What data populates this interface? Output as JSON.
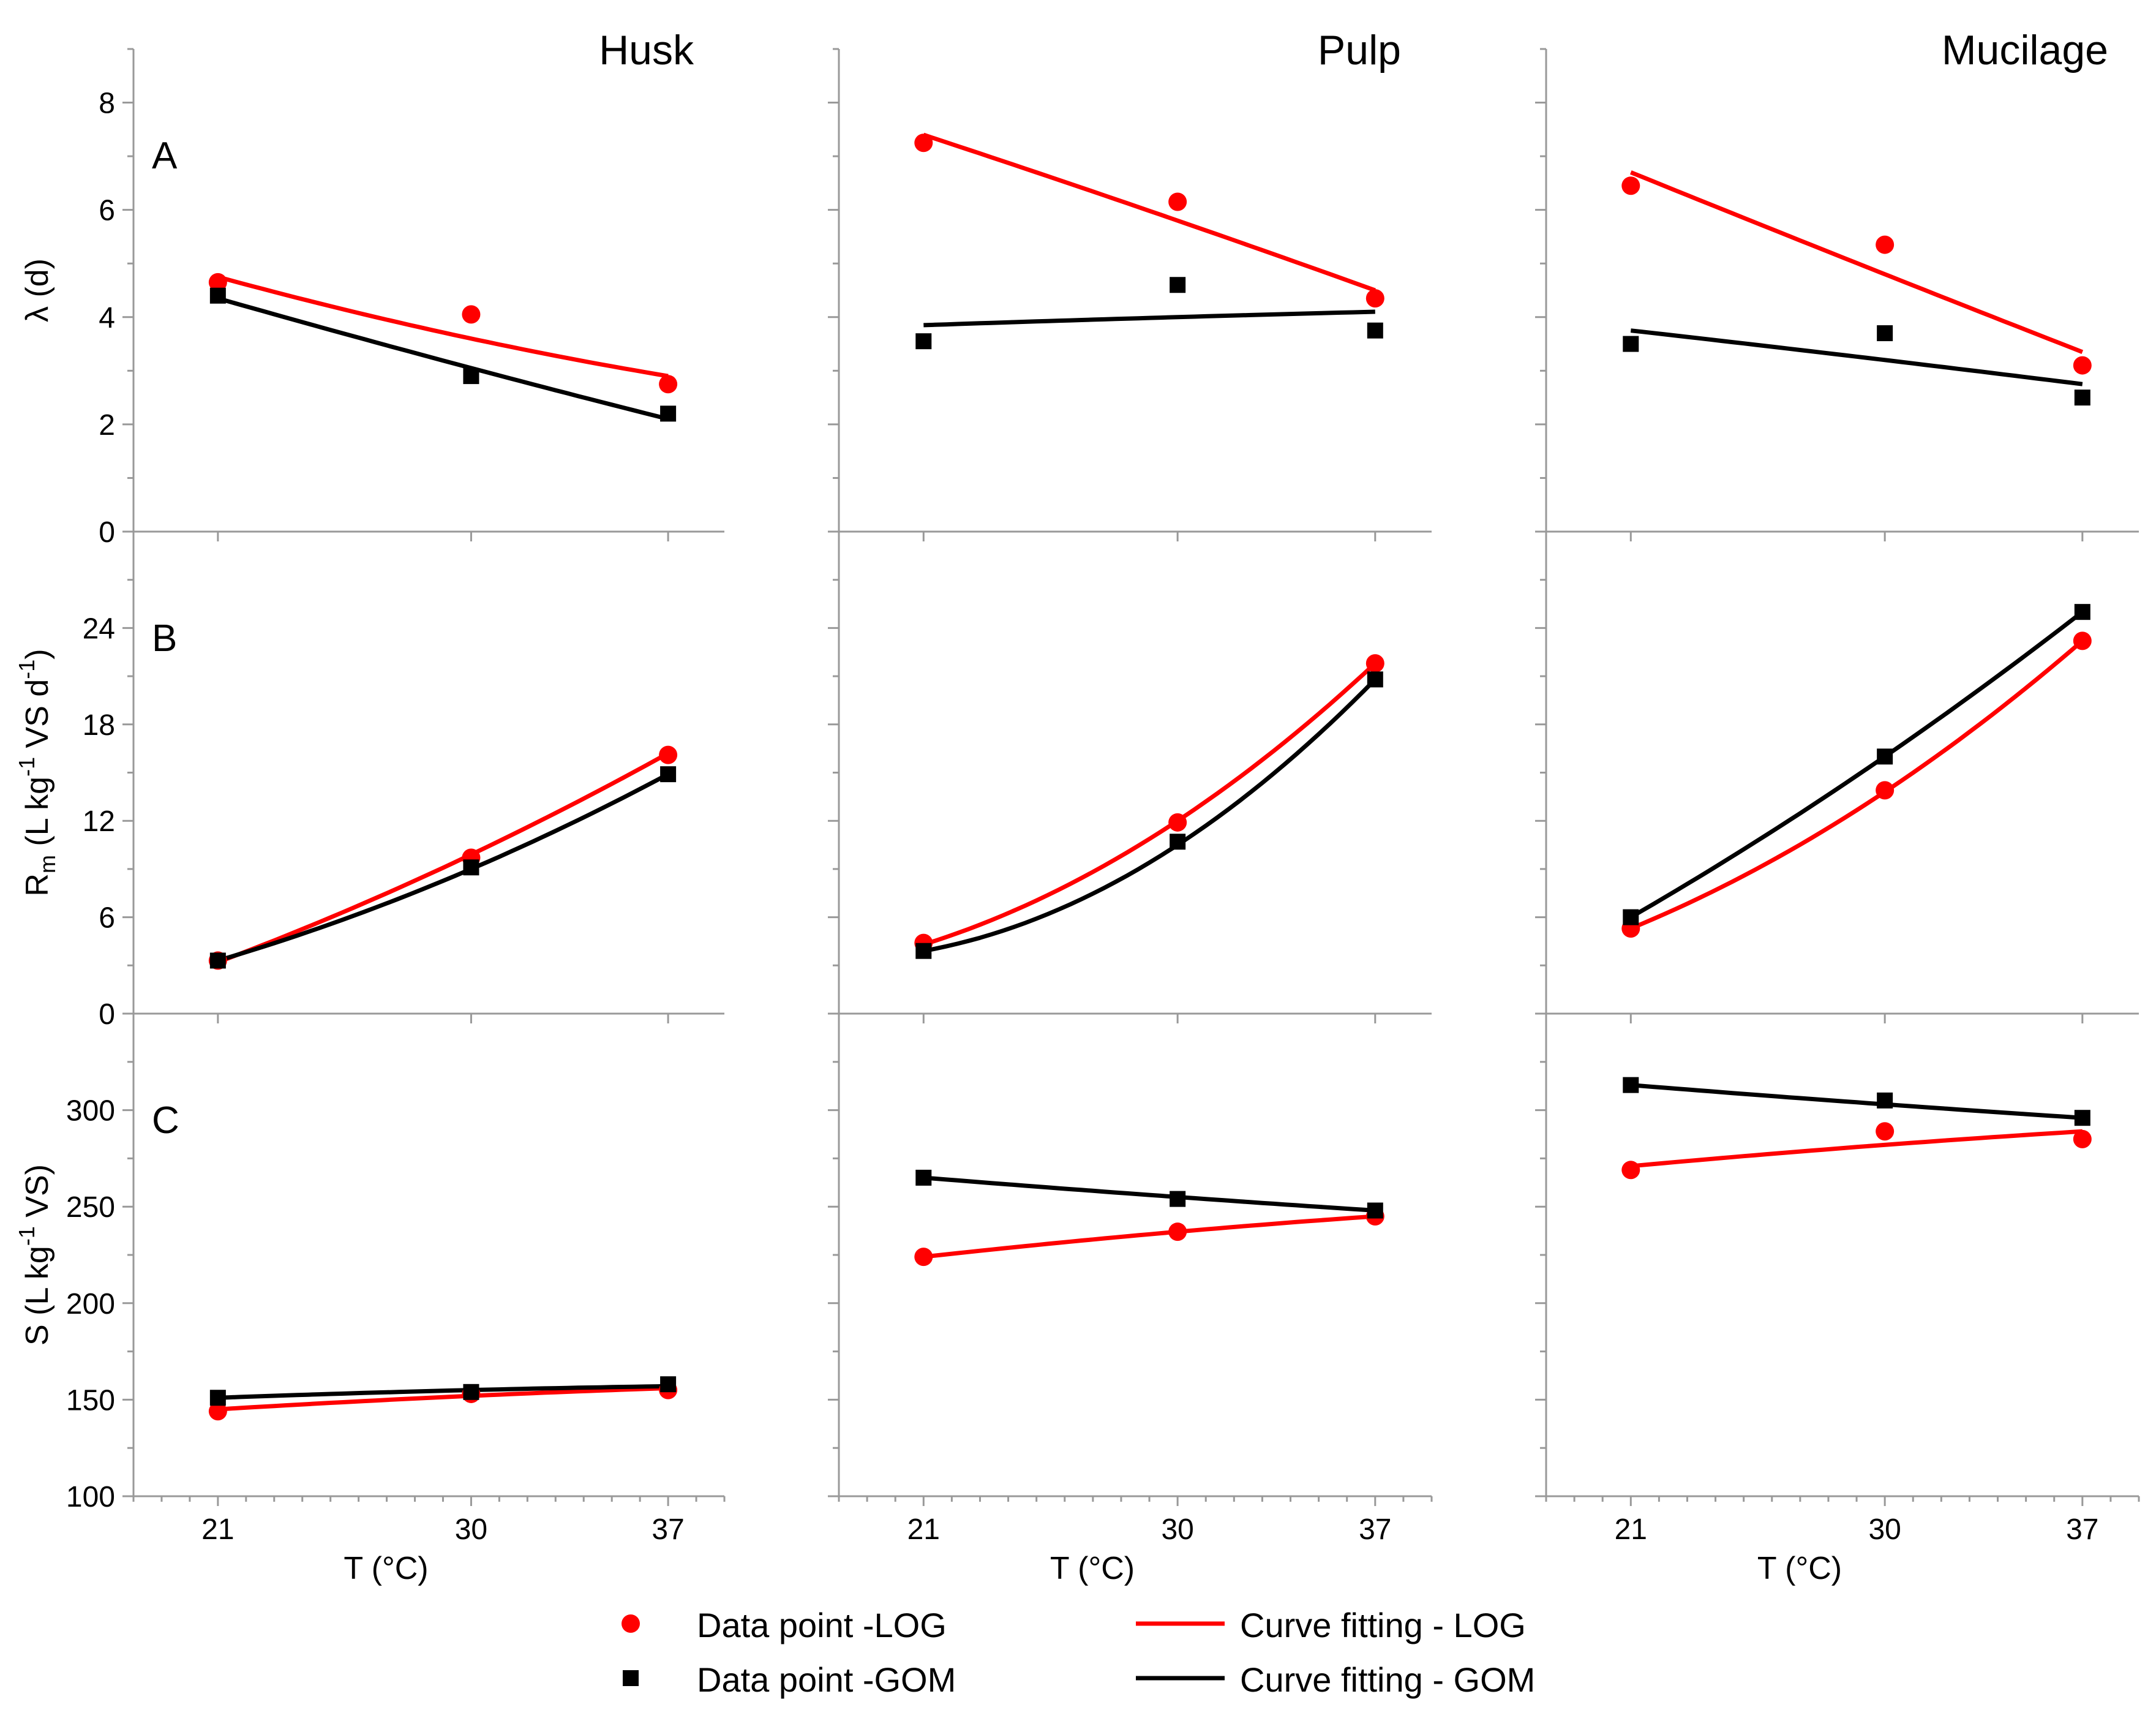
{
  "chart_data": {
    "type": "scatter",
    "columns": [
      "Husk",
      "Pulp",
      "Mucilage"
    ],
    "rows": [
      {
        "letter": "A",
        "ylabel": "λ (d)",
        "ylim": [
          0,
          9
        ],
        "yticks": [
          0,
          2,
          4,
          6,
          8
        ]
      },
      {
        "letter": "B",
        "ylabel_main": "R",
        "ylabel_sub": "m",
        "ylabel_rest1": " (L kg",
        "ylabel_sup1": "-1",
        "ylabel_rest2": " VS d",
        "ylabel_sup2": "-1",
        "ylabel_rest3": ")",
        "ylim": [
          0,
          30
        ],
        "yticks": [
          0,
          6,
          12,
          18,
          24
        ]
      },
      {
        "letter": "C",
        "ylabel_main": "S (L kg",
        "ylabel_sup1": "-1",
        "ylabel_rest1": " VS)",
        "ylim": [
          100,
          350
        ],
        "yticks": [
          100,
          150,
          200,
          250,
          300
        ]
      }
    ],
    "x": [
      21,
      30,
      37
    ],
    "xlim": [
      18,
      39
    ],
    "xlabel": "T (°C)",
    "series": [
      {
        "name": "Data point -LOG",
        "fit_name": "Curve fitting - LOG",
        "color": "#ff0000",
        "marker": "circle",
        "data": [
          [
            [
              4.65,
              4.05,
              2.75
            ],
            [
              3.3,
              9.7,
              16.1
            ],
            [
              144,
              153,
              155
            ]
          ],
          [
            [
              7.25,
              6.15,
              4.35
            ],
            [
              4.4,
              11.9,
              21.8
            ],
            [
              224,
              237,
              245
            ]
          ],
          [
            [
              6.45,
              5.35,
              3.1
            ],
            [
              5.3,
              13.9,
              23.2
            ],
            [
              269,
              289,
              285
            ]
          ]
        ],
        "fit": [
          [
            [
              4.75,
              3.6,
              2.9
            ],
            [
              3.2,
              9.9,
              16.2
            ],
            [
              145,
              152,
              156
            ]
          ],
          [
            [
              7.4,
              5.8,
              4.5
            ],
            [
              4.3,
              12.0,
              21.8
            ],
            [
              224,
              237,
              245
            ]
          ],
          [
            [
              6.7,
              4.8,
              3.35
            ],
            [
              5.3,
              13.8,
              23.2
            ],
            [
              271,
              282,
              289
            ]
          ]
        ]
      },
      {
        "name": "Data point -GOM",
        "fit_name": "Curve fitting - GOM",
        "color": "#000000",
        "marker": "square",
        "data": [
          [
            [
              4.4,
              2.9,
              2.2
            ],
            [
              3.3,
              9.1,
              14.9
            ],
            [
              151,
              154,
              158
            ]
          ],
          [
            [
              3.55,
              4.6,
              3.75
            ],
            [
              3.9,
              10.7,
              20.8
            ],
            [
              265,
              254,
              248
            ]
          ],
          [
            [
              3.5,
              3.7,
              2.5
            ],
            [
              6.0,
              16.0,
              25.0
            ],
            [
              313,
              305,
              296
            ]
          ]
        ],
        "fit": [
          [
            [
              4.35,
              3.05,
              2.1
            ],
            [
              3.3,
              9.0,
              14.9
            ],
            [
              151,
              155,
              157
            ]
          ],
          [
            [
              3.85,
              4.0,
              4.1
            ],
            [
              3.9,
              10.5,
              20.8
            ],
            [
              265,
              255,
              248
            ]
          ],
          [
            [
              3.75,
              3.2,
              2.75
            ],
            [
              6.0,
              16.0,
              25.0
            ],
            [
              313,
              303,
              296
            ]
          ]
        ]
      }
    ]
  }
}
